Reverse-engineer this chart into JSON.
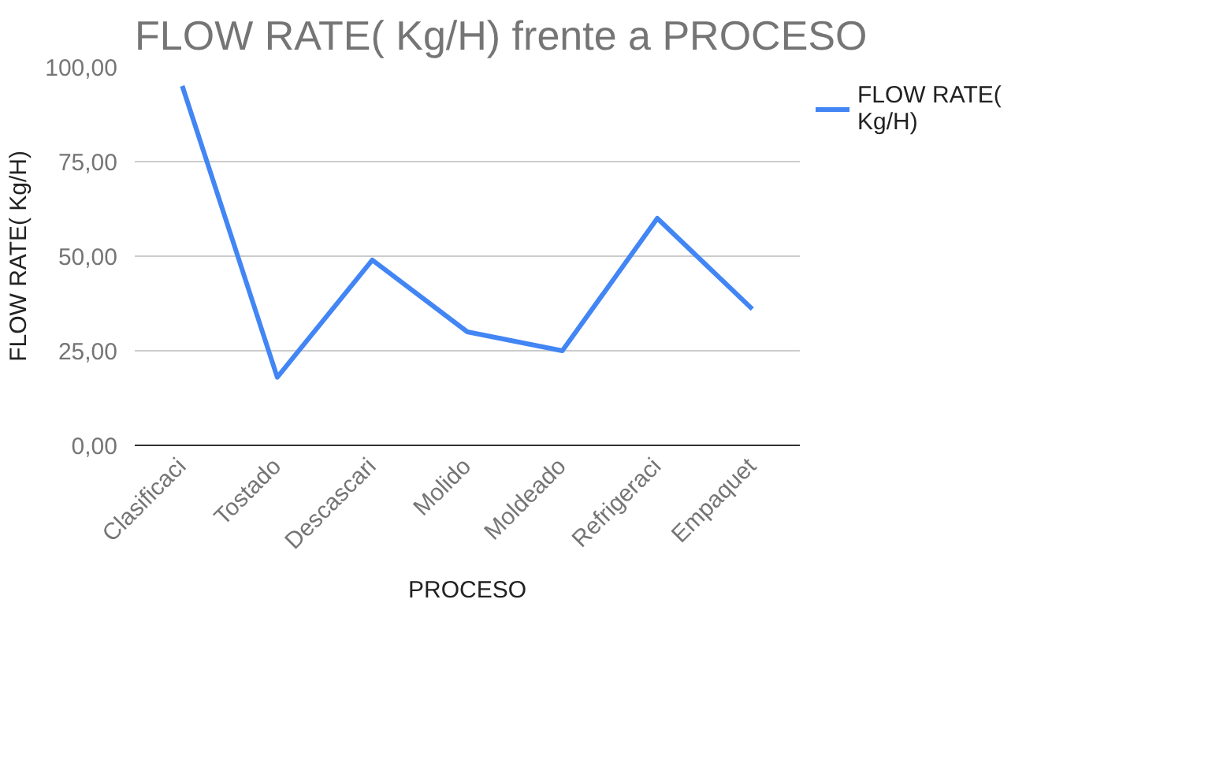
{
  "chart_data": {
    "type": "line",
    "title": "FLOW RATE( Kg/H) frente a PROCESO",
    "xlabel": "PROCESO",
    "ylabel": "FLOW RATE( Kg/H)",
    "categories": [
      "Clasificaci",
      "Tostado",
      "Descascari",
      "Molido",
      "Moldeado",
      "Refrigeraci",
      "Empaquet"
    ],
    "series": [
      {
        "name": "FLOW RATE( Kg/H)",
        "color": "#4285f4",
        "values": [
          95,
          18,
          49,
          30,
          25,
          60,
          36
        ]
      }
    ],
    "ylim": [
      0,
      100
    ],
    "yticks": [
      {
        "value": 0,
        "label": "0,00"
      },
      {
        "value": 25,
        "label": "25,00"
      },
      {
        "value": 50,
        "label": "50,00"
      },
      {
        "value": 75,
        "label": "75,00"
      },
      {
        "value": 100,
        "label": "100,00"
      }
    ],
    "grid": "y",
    "legend": "right",
    "line_style": "solid",
    "marker": "none"
  }
}
